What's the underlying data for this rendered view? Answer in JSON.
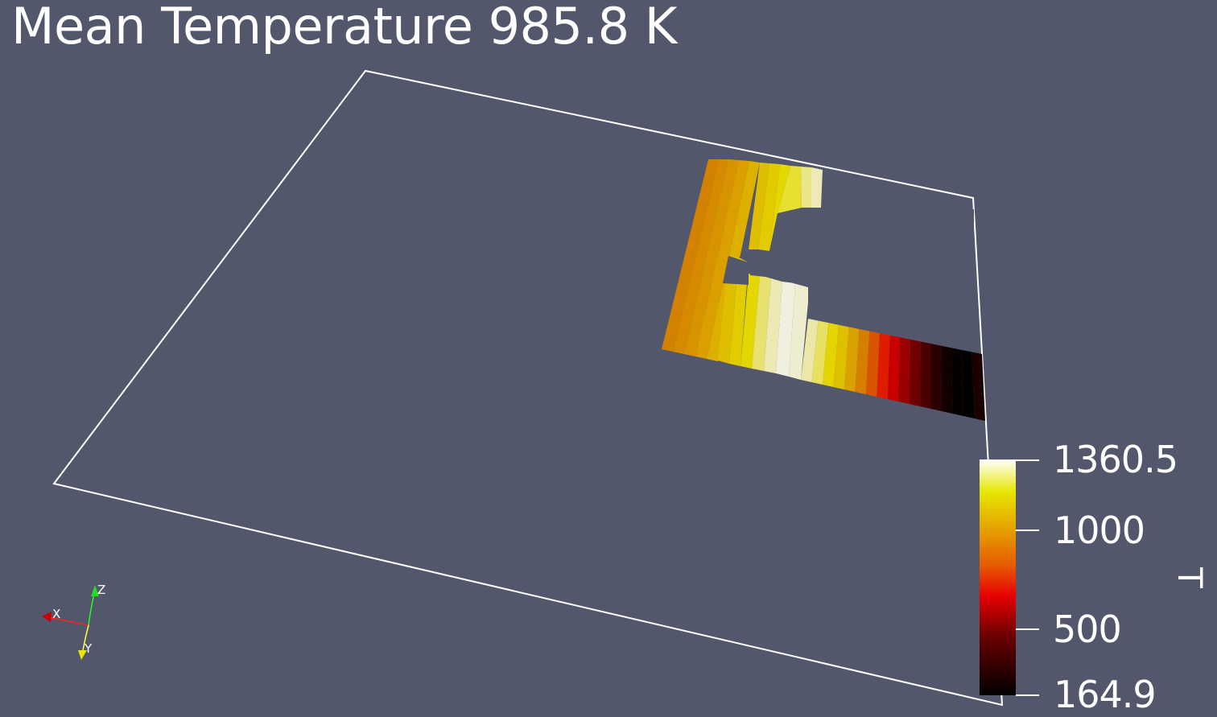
{
  "viewport": {
    "title": "Mean Temperature 985.8 K",
    "background_color": "#52576b",
    "outline_color": "#ffffff"
  },
  "scalar_bar": {
    "title": "T",
    "range": [
      164.9,
      1360.5
    ],
    "labels": [
      "1360.5",
      "1000",
      "500",
      "164.9"
    ],
    "label_values": [
      1360.5,
      1000,
      500,
      164.9
    ],
    "colormap": "Black-Body Radiation",
    "color_stops": [
      "#000000",
      "#e60000",
      "#e6e600",
      "#ffffff"
    ]
  },
  "orientation_axes": {
    "x_label": "X",
    "y_label": "Y",
    "z_label": "Z",
    "x_color": "#ff0000",
    "y_color": "#ffff00",
    "z_color": "#00ff00"
  }
}
